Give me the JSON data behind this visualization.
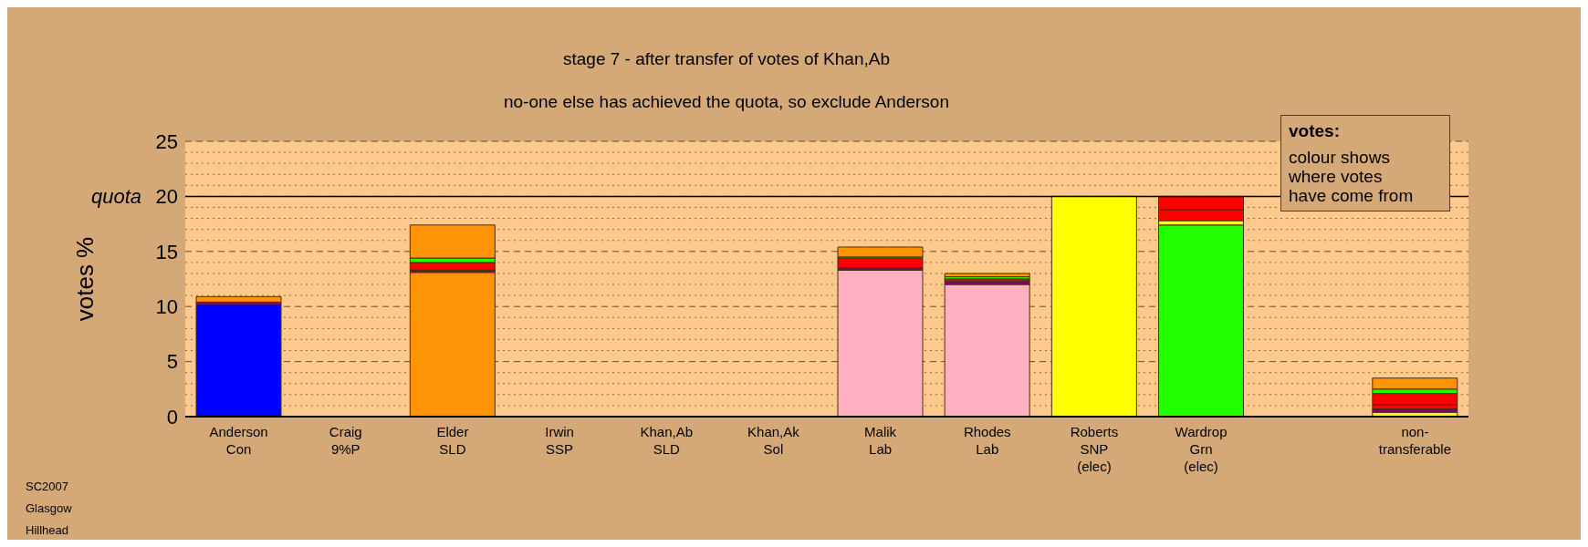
{
  "chart_data": {
    "type": "bar",
    "stacked": true,
    "title": "stage 7 - after transfer of votes of Khan,Ab",
    "subtitle": "no-one else has achieved the quota, so exclude Anderson",
    "ylabel": "votes %",
    "categories": [
      "Anderson\nCon",
      "Craig\n9%P",
      "Elder\nSLD",
      "Irwin\nSSP",
      "Khan,Ab\nSLD",
      "Khan,Ak\nSol",
      "Malik\nLab",
      "Rhodes\nLab",
      "Roberts\nSNP\n(elec)",
      "Wardrop\nGrn\n(elec)",
      null,
      "non-\ntransferable"
    ],
    "series": [
      {
        "colors": [
          "#0000ff",
          null,
          "#ff9408",
          null,
          null,
          null,
          "#ffb0c0",
          "#ffb0c0",
          "#ffff00",
          "#22ff00",
          null,
          "#ffff00"
        ],
        "values": [
          10.2,
          0,
          13.1,
          0,
          0,
          0,
          13.3,
          12.0,
          20.0,
          17.4,
          null,
          0.4
        ]
      },
      {
        "colors": [
          "#800080",
          null,
          "#800080",
          null,
          null,
          null,
          "#800080",
          "#800080",
          null,
          "#ffff00",
          null,
          "#800080"
        ],
        "values": [
          0.2,
          null,
          0.2,
          null,
          null,
          null,
          0.2,
          0.3,
          null,
          0.4,
          null,
          0.3
        ]
      },
      {
        "colors": [
          null,
          null,
          "#ff0000",
          null,
          null,
          null,
          "#ff0000",
          "#ff0000",
          null,
          "#ff0000",
          null,
          "#ff0000"
        ],
        "values": [
          null,
          null,
          0.7,
          null,
          null,
          null,
          0.9,
          0.2,
          null,
          1.0,
          null,
          0.4
        ]
      },
      {
        "colors": [
          null,
          null,
          null,
          null,
          null,
          null,
          null,
          null,
          null,
          "#ff0000",
          null,
          "#ff0000"
        ],
        "values": [
          null,
          null,
          null,
          null,
          null,
          null,
          null,
          null,
          null,
          1.2,
          null,
          1.0
        ]
      },
      {
        "colors": [
          null,
          null,
          "#22ff00",
          null,
          null,
          null,
          "#22ff00",
          "#22ff00",
          null,
          null,
          null,
          "#22ff00"
        ],
        "values": [
          null,
          null,
          0.4,
          null,
          null,
          null,
          0.1,
          0.2,
          null,
          null,
          null,
          0.4
        ]
      },
      {
        "colors": [
          "#ff9408",
          null,
          "#ff9408",
          null,
          null,
          null,
          "#ff9408",
          "#ff9408",
          null,
          null,
          null,
          "#ff9408"
        ],
        "values": [
          0.5,
          null,
          3.0,
          null,
          null,
          null,
          0.9,
          0.3,
          null,
          null,
          null,
          1.0
        ]
      }
    ],
    "ylim": [
      0,
      25
    ],
    "yticks": [
      0,
      {
        "value": 1,
        "label": null
      },
      {
        "value": 2,
        "label": null
      },
      {
        "value": 3,
        "label": null
      },
      {
        "value": 4,
        "label": null
      },
      5,
      {
        "value": 6,
        "label": null
      },
      {
        "value": 7,
        "label": null
      },
      {
        "value": 8,
        "label": null
      },
      {
        "value": 9,
        "label": null
      },
      10,
      {
        "value": 11,
        "label": null
      },
      {
        "value": 12,
        "label": null
      },
      {
        "value": 13,
        "label": null
      },
      {
        "value": 14,
        "label": null
      },
      15,
      {
        "value": 16,
        "label": null
      },
      {
        "value": 17,
        "label": null
      },
      {
        "value": 18,
        "label": null
      },
      {
        "value": 19,
        "label": null
      },
      20,
      {
        "value": 21,
        "label": null
      },
      {
        "value": 22,
        "label": null
      },
      {
        "value": 23,
        "label": null
      },
      {
        "value": 24,
        "label": null
      },
      25
    ],
    "grid": "y",
    "ref_lines": [
      {
        "axis": "y",
        "value": 20,
        "label": "quota",
        "color": "#000000",
        "line_style": "solid"
      }
    ],
    "annotations": [
      "votes:",
      "colour shows\nwhere votes\nhave come from",
      "SC2007",
      "Glasgow",
      "Hillhead"
    ]
  }
}
